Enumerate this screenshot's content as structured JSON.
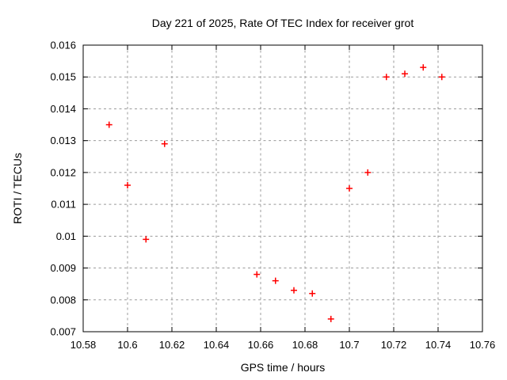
{
  "chart_data": {
    "type": "scatter",
    "title": "Day 221 of 2025, Rate Of TEC Index for receiver grot",
    "xlabel": "GPS time / hours",
    "ylabel": "ROTI / TECUs",
    "xlim": [
      10.58,
      10.76
    ],
    "ylim": [
      0.007,
      0.016
    ],
    "grid": true,
    "legend": "none",
    "x_ticks": [
      {
        "value": 10.58,
        "label": "10.58"
      },
      {
        "value": 10.6,
        "label": "10.6"
      },
      {
        "value": 10.62,
        "label": "10.62"
      },
      {
        "value": 10.64,
        "label": "10.64"
      },
      {
        "value": 10.66,
        "label": "10.66"
      },
      {
        "value": 10.68,
        "label": "10.68"
      },
      {
        "value": 10.7,
        "label": "10.7"
      },
      {
        "value": 10.72,
        "label": "10.72"
      },
      {
        "value": 10.74,
        "label": "10.74"
      },
      {
        "value": 10.76,
        "label": "10.76"
      }
    ],
    "y_ticks": [
      {
        "value": 0.007,
        "label": "0.007"
      },
      {
        "value": 0.008,
        "label": "0.008"
      },
      {
        "value": 0.009,
        "label": "0.009"
      },
      {
        "value": 0.01,
        "label": "0.01"
      },
      {
        "value": 0.011,
        "label": "0.011"
      },
      {
        "value": 0.012,
        "label": "0.012"
      },
      {
        "value": 0.013,
        "label": "0.013"
      },
      {
        "value": 0.014,
        "label": "0.014"
      },
      {
        "value": 0.015,
        "label": "0.015"
      },
      {
        "value": 0.016,
        "label": "0.016"
      }
    ],
    "marker": {
      "shape": "plus",
      "color": "#ff0000",
      "size": 8
    },
    "colors": {
      "border": "#000000",
      "grid": "#9b9b9b",
      "background": "#ffffff"
    },
    "series": [
      {
        "name": "ROTI",
        "points": [
          [
            10.5917,
            0.0135
          ],
          [
            10.6,
            0.0116
          ],
          [
            10.6083,
            0.0099
          ],
          [
            10.6167,
            0.0129
          ],
          [
            10.6583,
            0.0088
          ],
          [
            10.6667,
            0.0086
          ],
          [
            10.675,
            0.0083
          ],
          [
            10.6833,
            0.0082
          ],
          [
            10.6917,
            0.0074
          ],
          [
            10.7,
            0.0115
          ],
          [
            10.7083,
            0.012
          ],
          [
            10.7167,
            0.015
          ],
          [
            10.725,
            0.0151
          ],
          [
            10.7333,
            0.0153
          ],
          [
            10.7417,
            0.015
          ]
        ]
      }
    ]
  }
}
